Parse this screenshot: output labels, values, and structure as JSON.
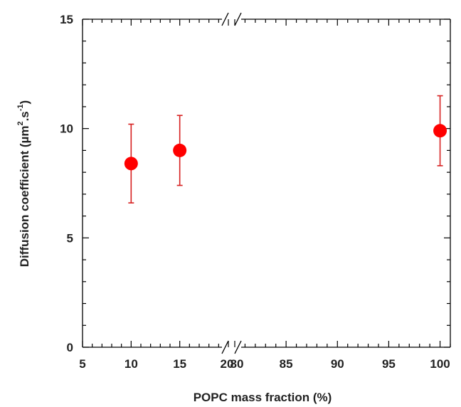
{
  "chart_data": {
    "type": "scatter",
    "title": "",
    "xlabel": "POPC mass fraction (%)",
    "ylabel": {
      "prefix": "Diffusion coefficient (µm",
      "sup1": "2",
      "mid": ".s",
      "sup2": "-1",
      "suffix": ")"
    },
    "x_axis": {
      "broken": true,
      "segments": [
        {
          "range": [
            5,
            20
          ],
          "ticks": [
            "5",
            "10",
            "15",
            "20"
          ]
        },
        {
          "range": [
            80,
            101
          ],
          "ticks": [
            "80",
            "85",
            "90",
            "95",
            "100"
          ]
        }
      ]
    },
    "y_axis": {
      "range": [
        0,
        15
      ],
      "ticks": [
        "0",
        "5",
        "10",
        "15"
      ]
    },
    "grid": false,
    "legend": "none",
    "points": [
      {
        "x": 10,
        "y": 8.4,
        "y_low": 6.6,
        "y_high": 10.2
      },
      {
        "x": 15,
        "y": 9.0,
        "y_low": 7.4,
        "y_high": 10.6
      },
      {
        "x": 100,
        "y": 9.9,
        "y_low": 8.3,
        "y_high": 11.5
      }
    ],
    "marker_color": "#ff0000",
    "errorbar_color": "#d62020"
  }
}
